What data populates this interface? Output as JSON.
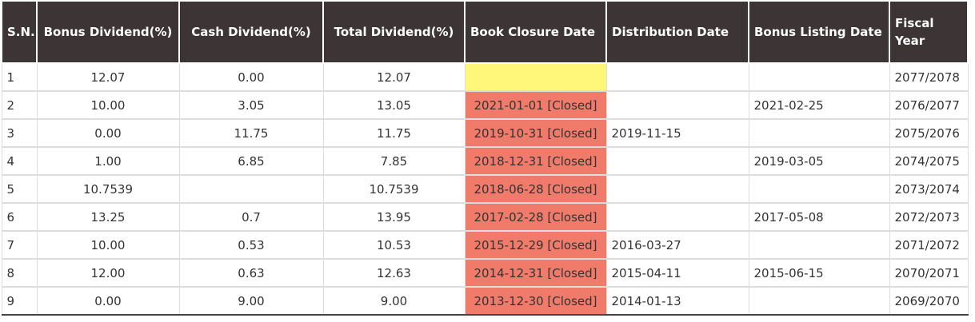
{
  "headers": {
    "sn": "S.N.",
    "bonus": "Bonus Dividend(%)",
    "cash": "Cash Dividend(%)",
    "total": "Total Dividend(%)",
    "book_closure": "Book Closure Date",
    "distribution": "Distribution Date",
    "bonus_listing": "Bonus Listing Date",
    "fiscal": "Fiscal Year"
  },
  "colors": {
    "header_bg": "#3d3535",
    "closed_bg": "#f07b6b",
    "pending_bg": "#fff77a"
  },
  "rows": [
    {
      "sn": "1",
      "bonus": "12.07",
      "cash": "0.00",
      "total": "12.07",
      "book_closure": "",
      "distribution": "",
      "bonus_listing": "",
      "fiscal": "2077/2078",
      "status": "pending"
    },
    {
      "sn": "2",
      "bonus": "10.00",
      "cash": "3.05",
      "total": "13.05",
      "book_closure": "2021-01-01 [Closed]",
      "distribution": "",
      "bonus_listing": "2021-02-25",
      "fiscal": "2076/2077",
      "status": "closed"
    },
    {
      "sn": "3",
      "bonus": "0.00",
      "cash": "11.75",
      "total": "11.75",
      "book_closure": "2019-10-31 [Closed]",
      "distribution": "2019-11-15",
      "bonus_listing": "",
      "fiscal": "2075/2076",
      "status": "closed"
    },
    {
      "sn": "4",
      "bonus": "1.00",
      "cash": "6.85",
      "total": "7.85",
      "book_closure": "2018-12-31 [Closed]",
      "distribution": "",
      "bonus_listing": "2019-03-05",
      "fiscal": "2074/2075",
      "status": "closed"
    },
    {
      "sn": "5",
      "bonus": "10.7539",
      "cash": "",
      "total": "10.7539",
      "book_closure": "2018-06-28 [Closed]",
      "distribution": "",
      "bonus_listing": "",
      "fiscal": "2073/2074",
      "status": "closed"
    },
    {
      "sn": "6",
      "bonus": "13.25",
      "cash": "0.7",
      "total": "13.95",
      "book_closure": "2017-02-28 [Closed]",
      "distribution": "",
      "bonus_listing": "2017-05-08",
      "fiscal": "2072/2073",
      "status": "closed"
    },
    {
      "sn": "7",
      "bonus": "10.00",
      "cash": "0.53",
      "total": "10.53",
      "book_closure": "2015-12-29 [Closed]",
      "distribution": "2016-03-27",
      "bonus_listing": "",
      "fiscal": "2071/2072",
      "status": "closed"
    },
    {
      "sn": "8",
      "bonus": "12.00",
      "cash": "0.63",
      "total": "12.63",
      "book_closure": "2014-12-31 [Closed]",
      "distribution": "2015-04-11",
      "bonus_listing": "2015-06-15",
      "fiscal": "2070/2071",
      "status": "closed"
    },
    {
      "sn": "9",
      "bonus": "0.00",
      "cash": "9.00",
      "total": "9.00",
      "book_closure": "2013-12-30 [Closed]",
      "distribution": "2014-01-13",
      "bonus_listing": "",
      "fiscal": "2069/2070",
      "status": "closed"
    }
  ]
}
